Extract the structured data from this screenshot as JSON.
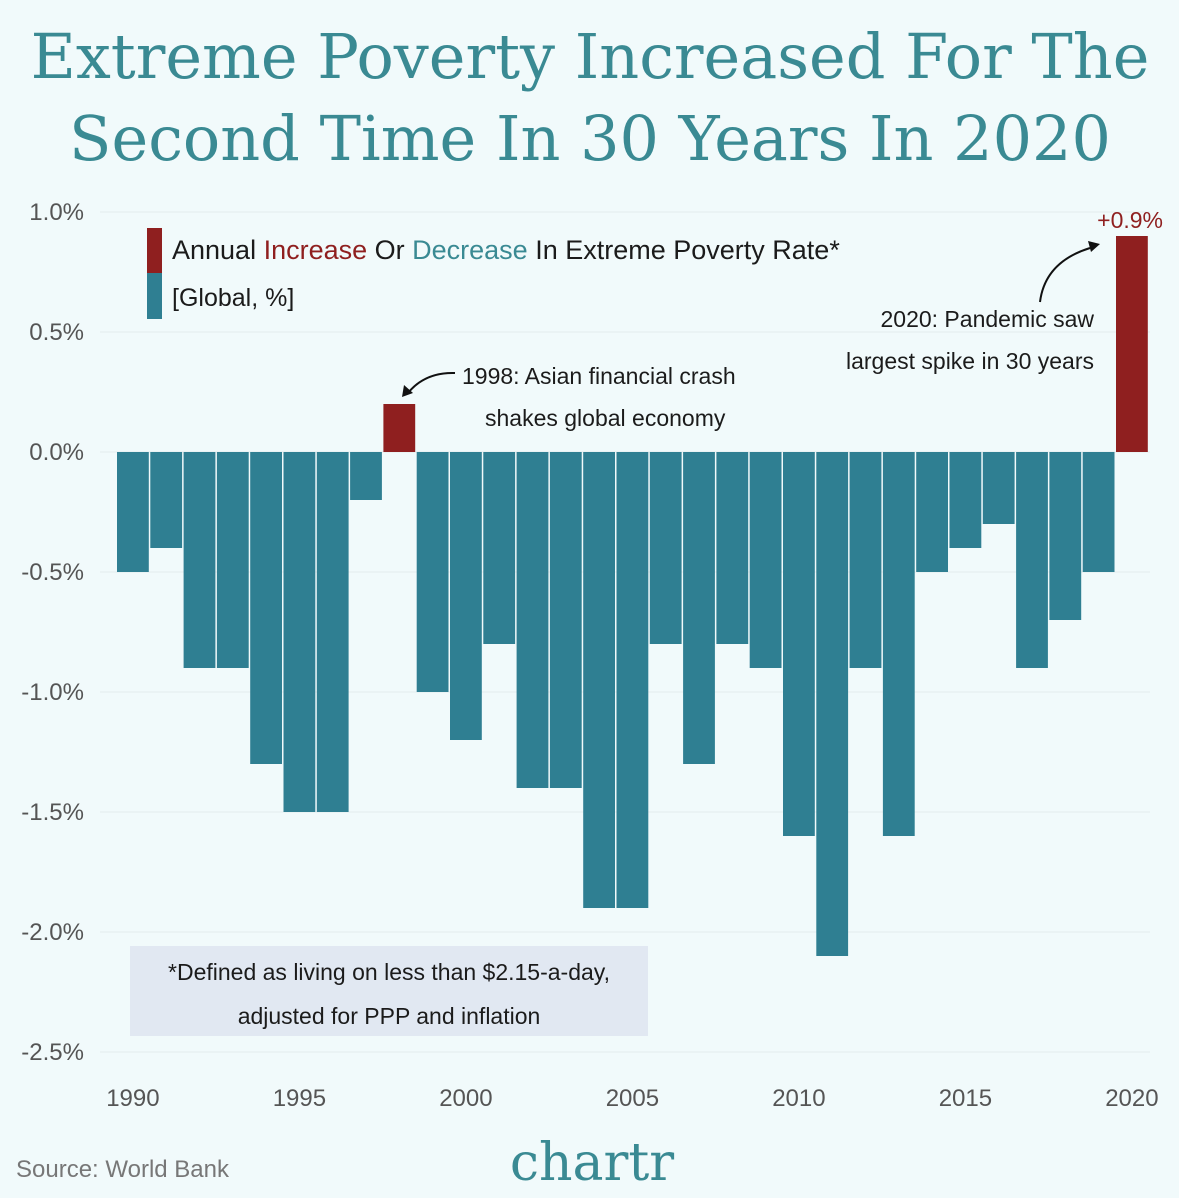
{
  "chart_data": {
    "type": "bar",
    "title_line1": "Extreme Poverty Increased For The",
    "title_line2": "Second Time In 30 Years In 2020",
    "legend": {
      "part1": "Annual ",
      "increase": "Increase",
      "part2": " Or ",
      "decrease": "Decrease",
      "part3": " In Extreme Poverty Rate*",
      "subtitle": "[Global, %]"
    },
    "x": [
      1990,
      1991,
      1992,
      1993,
      1994,
      1995,
      1996,
      1997,
      1998,
      1999,
      2000,
      2001,
      2002,
      2003,
      2004,
      2005,
      2006,
      2007,
      2008,
      2009,
      2010,
      2011,
      2012,
      2013,
      2014,
      2015,
      2016,
      2017,
      2018,
      2019,
      2020
    ],
    "values": [
      -0.5,
      -0.4,
      -0.9,
      -0.9,
      -1.3,
      -1.5,
      -1.5,
      -0.2,
      0.2,
      -1.0,
      -1.2,
      -0.8,
      -1.4,
      -1.4,
      -1.9,
      -1.9,
      -0.8,
      -1.3,
      -0.8,
      -0.9,
      -1.6,
      -2.1,
      -0.9,
      -1.6,
      -0.5,
      -0.4,
      -0.3,
      -0.9,
      -0.7,
      -0.5,
      0.9
    ],
    "ylim": [
      -2.5,
      1.0
    ],
    "y_ticks": [
      "1.0%",
      "0.5%",
      "0.0%",
      "-0.5%",
      "-1.0%",
      "-1.5%",
      "-2.0%",
      "-2.5%"
    ],
    "x_ticks": [
      "1990",
      "1995",
      "2000",
      "2005",
      "2010",
      "2015",
      "2020"
    ],
    "grid": true,
    "colors": {
      "increase": "#8f1f1f",
      "decrease": "#2f7f92",
      "title": "#3a8a93",
      "background": "#f1fafb"
    },
    "annotations": {
      "value_2020": "+0.9%",
      "a1998_line1": "1998: Asian financial crash",
      "a1998_line2": "shakes global economy",
      "a2020_line1": "2020: Pandemic saw",
      "a2020_line2": "largest spike in 30 years"
    },
    "footnote_line1": "*Defined as living on less than $2.15-a-day,",
    "footnote_line2": "adjusted for PPP and inflation",
    "source": "Source: World Bank",
    "logo": "chartr"
  }
}
